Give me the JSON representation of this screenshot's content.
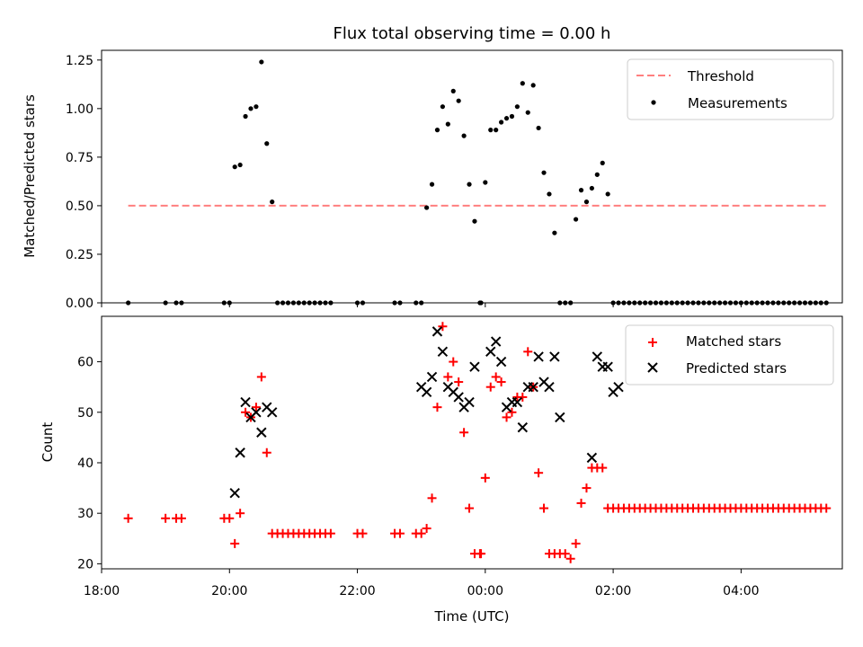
{
  "chart_data": [
    {
      "type": "scatter",
      "title": "Flux total observing time = 0.00 h",
      "ylabel": "Matched/Predicted stars",
      "xlabel": "",
      "ylim": [
        0,
        1.3
      ],
      "yticks": [
        "0.00",
        "0.25",
        "0.50",
        "0.75",
        "1.00",
        "1.25"
      ],
      "legend_position": "upper right",
      "grid": false,
      "colors": {
        "threshold": "#ff7f7f",
        "measurements": "#000000"
      },
      "threshold": {
        "name": "Threshold",
        "value": 0.5,
        "x_start": "18:25",
        "x_end": "05:20"
      },
      "measurements": {
        "name": "Measurements",
        "x": [
          "18:25",
          "19:00",
          "19:10",
          "19:15",
          "19:55",
          "20:00",
          "20:05",
          "20:10",
          "20:15",
          "20:20",
          "20:25",
          "20:30",
          "20:35",
          "20:40",
          "20:45",
          "20:50",
          "20:55",
          "21:00",
          "21:05",
          "21:10",
          "21:15",
          "21:20",
          "21:25",
          "21:30",
          "21:35",
          "22:00",
          "22:05",
          "22:35",
          "22:40",
          "22:55",
          "23:00",
          "23:05",
          "23:10",
          "23:15",
          "23:20",
          "23:25",
          "23:30",
          "23:35",
          "23:40",
          "23:45",
          "23:50",
          "23:55",
          "23:56",
          "00:00",
          "00:05",
          "00:10",
          "00:15",
          "00:20",
          "00:25",
          "00:30",
          "00:35",
          "00:40",
          "00:45",
          "00:50",
          "00:55",
          "01:00",
          "01:05",
          "01:10",
          "01:15",
          "01:20",
          "01:25",
          "01:30",
          "01:35",
          "01:40",
          "01:45",
          "01:50",
          "01:55",
          "02:00",
          "02:05",
          "02:10",
          "02:15",
          "02:20",
          "02:25",
          "02:30",
          "02:35",
          "02:40",
          "02:45",
          "02:50",
          "02:55",
          "03:00",
          "03:05",
          "03:10",
          "03:15",
          "03:20",
          "03:25",
          "03:30",
          "03:35",
          "03:40",
          "03:45",
          "03:50",
          "03:55",
          "04:00",
          "04:05",
          "04:10",
          "04:15",
          "04:20",
          "04:25",
          "04:30",
          "04:35",
          "04:40",
          "04:45",
          "04:50",
          "04:55",
          "05:00",
          "05:05",
          "05:10",
          "05:15",
          "05:20"
        ],
        "y": [
          0.0,
          0.0,
          0.0,
          0.0,
          0.0,
          0.0,
          0.7,
          0.71,
          0.96,
          1.0,
          1.01,
          1.24,
          0.82,
          0.52,
          0.0,
          0.0,
          0.0,
          0.0,
          0.0,
          0.0,
          0.0,
          0.0,
          0.0,
          0.0,
          0.0,
          0.0,
          0.0,
          0.0,
          0.0,
          0.0,
          0.0,
          0.49,
          0.61,
          0.89,
          1.01,
          0.92,
          1.09,
          1.04,
          0.86,
          0.61,
          0.42,
          0.0,
          0.0,
          0.62,
          0.89,
          0.89,
          0.93,
          0.95,
          0.96,
          1.01,
          1.13,
          0.98,
          1.12,
          0.9,
          0.67,
          0.56,
          0.36,
          0.0,
          0.0,
          0.0,
          0.43,
          0.58,
          0.52,
          0.59,
          0.66,
          0.72,
          0.56,
          0.0,
          0.0,
          0.0,
          0.0,
          0.0,
          0.0,
          0.0,
          0.0,
          0.0,
          0.0,
          0.0,
          0.0,
          0.0,
          0.0,
          0.0,
          0.0,
          0.0,
          0.0,
          0.0,
          0.0,
          0.0,
          0.0,
          0.0,
          0.0,
          0.0,
          0.0,
          0.0,
          0.0,
          0.0,
          0.0,
          0.0,
          0.0,
          0.0,
          0.0,
          0.0,
          0.0,
          0.0,
          0.0,
          0.0,
          0.0,
          0.0
        ]
      }
    },
    {
      "type": "scatter",
      "title": "",
      "ylabel": "Count",
      "xlabel": "Time (UTC)",
      "xlim": [
        "18:00",
        "05:35"
      ],
      "ylim": [
        19,
        69
      ],
      "xticks": [
        "18:00",
        "20:00",
        "22:00",
        "00:00",
        "02:00",
        "04:00"
      ],
      "yticks": [
        "20",
        "30",
        "40",
        "50",
        "60"
      ],
      "legend_position": "upper right",
      "grid": false,
      "colors": {
        "matched": "#ff0000",
        "predicted": "#000000"
      },
      "series": [
        {
          "name": "Matched stars",
          "x": [
            "18:25",
            "19:00",
            "19:10",
            "19:15",
            "19:55",
            "20:00",
            "20:05",
            "20:10",
            "20:15",
            "20:20",
            "20:25",
            "20:30",
            "20:35",
            "20:40",
            "20:45",
            "20:50",
            "20:55",
            "21:00",
            "21:05",
            "21:10",
            "21:15",
            "21:20",
            "21:25",
            "21:30",
            "21:35",
            "22:00",
            "22:05",
            "22:35",
            "22:40",
            "22:55",
            "23:00",
            "23:05",
            "23:10",
            "23:15",
            "23:20",
            "23:25",
            "23:30",
            "23:35",
            "23:40",
            "23:45",
            "23:50",
            "23:55",
            "23:56",
            "00:00",
            "00:05",
            "00:10",
            "00:15",
            "00:20",
            "00:25",
            "00:30",
            "00:35",
            "00:40",
            "00:45",
            "00:50",
            "00:55",
            "01:00",
            "01:05",
            "01:10",
            "01:15",
            "01:20",
            "01:25",
            "01:30",
            "01:35",
            "01:40",
            "01:45",
            "01:50",
            "01:55",
            "02:00",
            "02:05",
            "02:10",
            "02:15",
            "02:20",
            "02:25",
            "02:30",
            "02:35",
            "02:40",
            "02:45",
            "02:50",
            "02:55",
            "03:00",
            "03:05",
            "03:10",
            "03:15",
            "03:20",
            "03:25",
            "03:30",
            "03:35",
            "03:40",
            "03:45",
            "03:50",
            "03:55",
            "04:00",
            "04:05",
            "04:10",
            "04:15",
            "04:20",
            "04:25",
            "04:30",
            "04:35",
            "04:40",
            "04:45",
            "04:50",
            "04:55",
            "05:00",
            "05:05",
            "05:10",
            "05:15",
            "05:20"
          ],
          "y": [
            29,
            29,
            29,
            29,
            29,
            29,
            24,
            30,
            50,
            49,
            51,
            57,
            42,
            26,
            26,
            26,
            26,
            26,
            26,
            26,
            26,
            26,
            26,
            26,
            26,
            26,
            26,
            26,
            26,
            26,
            26,
            27,
            33,
            51,
            67,
            57,
            60,
            56,
            46,
            31,
            22,
            22,
            22,
            37,
            55,
            57,
            56,
            49,
            50,
            53,
            53,
            62,
            55,
            38,
            31,
            22,
            22,
            22,
            22,
            21,
            24,
            32,
            35,
            39,
            39,
            39,
            31,
            31,
            31,
            31,
            31,
            31,
            31,
            31,
            31,
            31,
            31,
            31,
            31,
            31,
            31,
            31,
            31,
            31,
            31,
            31,
            31,
            31,
            31,
            31,
            31,
            31,
            31,
            31,
            31,
            31,
            31,
            31,
            31,
            31,
            31,
            31,
            31,
            31,
            31,
            31,
            31,
            31
          ]
        },
        {
          "name": "Predicted stars",
          "x": [
            "20:05",
            "20:10",
            "20:15",
            "20:20",
            "20:25",
            "20:30",
            "20:35",
            "20:40",
            "23:00",
            "23:05",
            "23:10",
            "23:15",
            "23:20",
            "23:25",
            "23:30",
            "23:35",
            "23:40",
            "23:45",
            "23:50",
            "00:05",
            "00:10",
            "00:15",
            "00:20",
            "00:25",
            "00:30",
            "00:35",
            "00:40",
            "00:45",
            "00:50",
            "00:55",
            "01:00",
            "01:05",
            "01:10",
            "01:40",
            "01:45",
            "01:50",
            "01:55",
            "02:00",
            "02:05"
          ],
          "y": [
            34,
            42,
            52,
            49,
            50,
            46,
            51,
            50,
            55,
            54,
            57,
            66,
            62,
            55,
            54,
            53,
            51,
            52,
            59,
            62,
            64,
            60,
            51,
            52,
            52,
            47,
            55,
            55,
            61,
            56,
            55,
            61,
            49,
            41,
            61,
            59,
            59,
            54,
            55
          ]
        }
      ]
    }
  ]
}
